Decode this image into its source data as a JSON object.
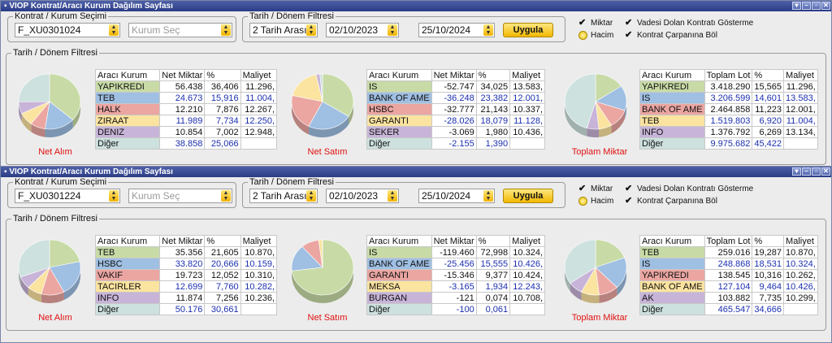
{
  "colors": {
    "c0": "#c8dba6",
    "c1": "#9fbfe3",
    "c2": "#eba6a2",
    "c3": "#fbe3a0",
    "c4": "#c8b4d8",
    "c5": "#cde1de"
  },
  "panels": [
    {
      "title": "VIOP Kontrat/Aracı Kurum Dağılım Sayfası",
      "kontrat_legend": "Kontrat / Kurum Seçimi",
      "kontrat_value": "F_XU0301024",
      "kurum_placeholder": "Kurum Seç",
      "tarih_legend": "Tarih / Dönem Filtresi",
      "range_value": "2 Tarih Arası",
      "date_from": "02/10/2023",
      "date_to": "25/10/2024",
      "apply_label": "Uygula",
      "opt_miktar": "Miktar",
      "opt_hacim": "Hacim",
      "opt_vadesi": "Vadesi Dolan Kontratı Gösterme",
      "opt_carpan": "Kontrat Çarpanına Böl",
      "section_legend": "Tarih / Dönem Filtresi",
      "net_alim_label": "Net Alım",
      "net_satim_label": "Net Satım",
      "toplam_label": "Toplam Miktar",
      "headers1": [
        "Aracı Kurum",
        "Net Miktar",
        "%",
        "Maliyet"
      ],
      "headers2": [
        "Aracı Kurum",
        "Net Miktar",
        "%",
        "Maliyet"
      ],
      "headers3": [
        "Aracı Kurum",
        "Toplam Lot",
        "%",
        "Maliyet"
      ],
      "t1": [
        [
          "YAPIKREDI",
          "56.438",
          "36,406",
          "11.296,"
        ],
        [
          "TEB",
          "24.673",
          "15,916",
          "11.004,"
        ],
        [
          "HALK",
          "12.210",
          "7,876",
          "12.267,"
        ],
        [
          "ZIRAAT",
          "11.989",
          "7,734",
          "12.250,"
        ],
        [
          "DENIZ",
          "10.854",
          "7,002",
          "12.948,"
        ],
        [
          "Diğer",
          "38.858",
          "25,066",
          ""
        ]
      ],
      "t2": [
        [
          "IS",
          "-52.747",
          "34,025",
          "13.583,"
        ],
        [
          "BANK OF AME",
          "-36.248",
          "23,382",
          "12.001,"
        ],
        [
          "HSBC",
          "-32.777",
          "21,143",
          "10.337,"
        ],
        [
          "GARANTI",
          "-28.026",
          "18,079",
          "11.128,"
        ],
        [
          "SEKER",
          "-3.069",
          "1,980",
          "10.436,"
        ],
        [
          "Diğer",
          "-2.155",
          "1,390",
          ""
        ]
      ],
      "t3": [
        [
          "YAPIKREDI",
          "3.418.290",
          "15,565",
          "11.296,"
        ],
        [
          "IS",
          "3.206.599",
          "14,601",
          "13.583,"
        ],
        [
          "BANK OF AME",
          "2.464.858",
          "11,223",
          "12.001,"
        ],
        [
          "TEB",
          "1.519.803",
          "6,920",
          "11.004,"
        ],
        [
          "INFO",
          "1.376.792",
          "6,269",
          "13.134,"
        ],
        [
          "Diğer",
          "9.975.682",
          "45,422",
          ""
        ]
      ],
      "pie1": [
        36.406,
        15.916,
        7.876,
        7.734,
        7.002,
        25.066
      ],
      "pie2": [
        34.025,
        23.382,
        21.143,
        18.079,
        1.98,
        1.39
      ],
      "pie3": [
        15.565,
        14.601,
        11.223,
        6.92,
        6.269,
        45.422
      ]
    },
    {
      "title": "VIOP Kontrat/Aracı Kurum Dağılım Sayfası",
      "kontrat_legend": "Kontrat / Kurum Seçimi",
      "kontrat_value": "F_XU0301224",
      "kurum_placeholder": "Kurum Seç",
      "tarih_legend": "Tarih / Dönem Filtresi",
      "range_value": "2 Tarih Arası",
      "date_from": "02/10/2023",
      "date_to": "25/10/2024",
      "apply_label": "Uygula",
      "opt_miktar": "Miktar",
      "opt_hacim": "Hacim",
      "opt_vadesi": "Vadesi Dolan Kontratı Gösterme",
      "opt_carpan": "Kontrat Çarpanına Böl",
      "section_legend": "Tarih / Dönem Filtresi",
      "net_alim_label": "Net Alım",
      "net_satim_label": "Net Satım",
      "toplam_label": "Toplam Miktar",
      "headers1": [
        "Aracı Kurum",
        "Net Miktar",
        "%",
        "Maliyet"
      ],
      "headers2": [
        "Aracı Kurum",
        "Net Miktar",
        "%",
        "Maliyet"
      ],
      "headers3": [
        "Aracı Kurum",
        "Toplam Lot",
        "%",
        "Maliyet"
      ],
      "t1": [
        [
          "TEB",
          "35.356",
          "21,605",
          "10.870,"
        ],
        [
          "HSBC",
          "33.820",
          "20,666",
          "10.159,"
        ],
        [
          "VAKIF",
          "19.723",
          "12,052",
          "10.310,"
        ],
        [
          "TACIRLER",
          "12.699",
          "7,760",
          "10.282,"
        ],
        [
          "INFO",
          "11.874",
          "7,256",
          "10.236,"
        ],
        [
          "Diğer",
          "50.176",
          "30,661",
          ""
        ]
      ],
      "t2": [
        [
          "IS",
          "-119.460",
          "72,998",
          "10.324,"
        ],
        [
          "BANK OF AME",
          "-25.456",
          "15,555",
          "10.426,"
        ],
        [
          "GARANTI",
          "-15.346",
          "9,377",
          "10.424,"
        ],
        [
          "MEKSA",
          "-3.165",
          "1,934",
          "12.243,"
        ],
        [
          "BURGAN",
          "-121",
          "0,074",
          "10.708,"
        ],
        [
          "Diğer",
          "-100",
          "0,061",
          ""
        ]
      ],
      "t3": [
        [
          "TEB",
          "259.016",
          "19,287",
          "10.870,"
        ],
        [
          "IS",
          "248.868",
          "18,531",
          "10.324,"
        ],
        [
          "YAPIKREDI",
          "138.545",
          "10,316",
          "10.262,"
        ],
        [
          "BANK OF AME",
          "127.104",
          "9,464",
          "10.426,"
        ],
        [
          "AK",
          "103.882",
          "7,735",
          "10.299,"
        ],
        [
          "Diğer",
          "465.547",
          "34,666",
          ""
        ]
      ],
      "pie1": [
        21.605,
        20.666,
        12.052,
        7.76,
        7.256,
        30.661
      ],
      "pie2": [
        72.998,
        15.555,
        9.377,
        1.934,
        0.074,
        0.061
      ],
      "pie3": [
        19.287,
        18.531,
        10.316,
        9.464,
        7.735,
        34.666
      ]
    }
  ]
}
